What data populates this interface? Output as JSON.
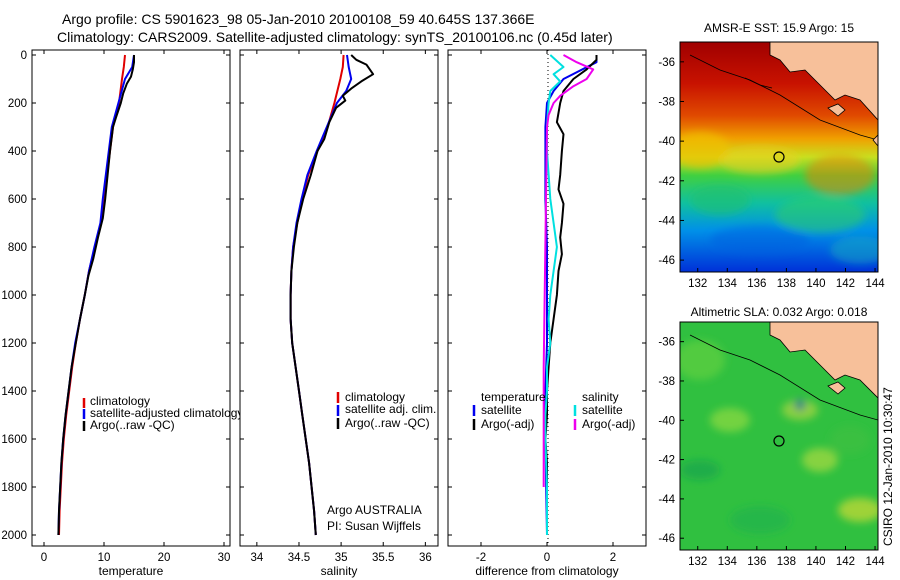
{
  "header": {
    "title_line1": "Argo profile: CS 5901623_98 05-Jan-2010 20100108_59 40.645S 137.366E",
    "title_line2": "Climatology: CARS2009. Satellite-adjusted climatology: synTS_20100106.nc (0.45d later)"
  },
  "side_label": "CSIRO 12-Jan-2010 10:30:47",
  "colors": {
    "red": "#e00000",
    "blue": "#0000ee",
    "black": "#000000",
    "cyan": "#00e0e0",
    "magenta": "#ee00ee",
    "land": "#f7c09a"
  },
  "chart_data": [
    {
      "type": "line",
      "id": "temperature",
      "xlabel": "temperature",
      "ylabel": "",
      "xlim": [
        -2,
        31
      ],
      "ylim": [
        0,
        2060
      ],
      "y_reversed": true,
      "xticks": [
        0,
        10,
        20,
        30
      ],
      "yticks": [
        0,
        200,
        400,
        600,
        800,
        1000,
        1200,
        1400,
        1600,
        1800,
        2000
      ],
      "legend": [
        {
          "label": "climatology",
          "color": "#e00000"
        },
        {
          "label": "satellite-adjusted climatology",
          "color": "#0000ee"
        },
        {
          "label": "Argo(..raw -QC)",
          "color": "#000000"
        }
      ],
      "series": [
        {
          "name": "climatology",
          "color": "#e00000",
          "points": [
            [
              13.5,
              0
            ],
            [
              13.3,
              50
            ],
            [
              13.0,
              100
            ],
            [
              12.5,
              200
            ],
            [
              11.5,
              300
            ],
            [
              11.0,
              400
            ],
            [
              10.5,
              500
            ],
            [
              10.0,
              600
            ],
            [
              9.5,
              700
            ],
            [
              8.5,
              800
            ],
            [
              7.5,
              900
            ],
            [
              6.8,
              1000
            ],
            [
              6.0,
              1100
            ],
            [
              5.3,
              1200
            ],
            [
              4.7,
              1300
            ],
            [
              4.2,
              1400
            ],
            [
              3.7,
              1500
            ],
            [
              3.3,
              1600
            ],
            [
              3.0,
              1700
            ],
            [
              2.8,
              1800
            ],
            [
              2.6,
              1900
            ],
            [
              2.5,
              2000
            ]
          ]
        },
        {
          "name": "satellite-adjusted climatology",
          "color": "#0000ee",
          "points": [
            [
              15.0,
              0
            ],
            [
              14.7,
              50
            ],
            [
              13.5,
              100
            ],
            [
              12.4,
              200
            ],
            [
              11.3,
              300
            ],
            [
              10.8,
              400
            ],
            [
              10.3,
              500
            ],
            [
              9.8,
              600
            ],
            [
              9.4,
              700
            ],
            [
              8.4,
              800
            ],
            [
              7.5,
              900
            ],
            [
              6.8,
              1000
            ],
            [
              6.0,
              1100
            ],
            [
              5.2,
              1200
            ],
            [
              4.6,
              1300
            ],
            [
              4.1,
              1400
            ],
            [
              3.6,
              1500
            ],
            [
              3.2,
              1600
            ],
            [
              2.9,
              1700
            ],
            [
              2.7,
              1800
            ],
            [
              2.5,
              1900
            ],
            [
              2.4,
              2000
            ]
          ]
        },
        {
          "name": "Argo(..raw -QC)",
          "color": "#000000",
          "points": [
            [
              15.0,
              0
            ],
            [
              15.0,
              30
            ],
            [
              14.8,
              60
            ],
            [
              14.5,
              90
            ],
            [
              13.8,
              120
            ],
            [
              13.2,
              160
            ],
            [
              12.8,
              200
            ],
            [
              12.0,
              260
            ],
            [
              11.5,
              300
            ],
            [
              11.0,
              400
            ],
            [
              10.6,
              500
            ],
            [
              10.2,
              600
            ],
            [
              9.8,
              680
            ],
            [
              9.0,
              760
            ],
            [
              8.2,
              850
            ],
            [
              7.4,
              920
            ],
            [
              6.8,
              1000
            ],
            [
              6.0,
              1100
            ],
            [
              5.3,
              1200
            ],
            [
              4.6,
              1300
            ],
            [
              4.1,
              1400
            ],
            [
              3.6,
              1500
            ],
            [
              3.2,
              1600
            ],
            [
              2.9,
              1700
            ],
            [
              2.7,
              1800
            ],
            [
              2.5,
              1900
            ],
            [
              2.4,
              2000
            ]
          ]
        }
      ]
    },
    {
      "type": "line",
      "id": "salinity",
      "xlabel": "salinity",
      "xlim": [
        33.8,
        36.15
      ],
      "ylim": [
        0,
        2060
      ],
      "y_reversed": true,
      "xticks": [
        34,
        34.5,
        35,
        35.5,
        36
      ],
      "tick_labels": [
        "34",
        "34.5",
        "35",
        "35.5",
        "36"
      ],
      "legend": [
        {
          "label": "climatology",
          "color": "#e00000"
        },
        {
          "label": "satellite adj. clim.",
          "color": "#0000ee"
        },
        {
          "label": "Argo(..raw -QC)",
          "color": "#000000"
        }
      ],
      "annotations": [
        "Argo AUSTRALIA",
        "PI: Susan Wijffels"
      ],
      "series": [
        {
          "name": "climatology",
          "color": "#e00000",
          "points": [
            [
              35.03,
              0
            ],
            [
              35.02,
              50
            ],
            [
              34.99,
              100
            ],
            [
              34.92,
              200
            ],
            [
              34.84,
              300
            ],
            [
              34.72,
              400
            ],
            [
              34.61,
              500
            ],
            [
              34.54,
              600
            ],
            [
              34.48,
              700
            ],
            [
              34.43,
              800
            ],
            [
              34.41,
              900
            ],
            [
              34.4,
              1000
            ],
            [
              34.4,
              1100
            ],
            [
              34.42,
              1200
            ],
            [
              34.46,
              1300
            ],
            [
              34.5,
              1400
            ],
            [
              34.54,
              1500
            ],
            [
              34.58,
              1600
            ],
            [
              34.62,
              1700
            ],
            [
              34.65,
              1800
            ],
            [
              34.68,
              1900
            ],
            [
              34.7,
              2000
            ]
          ]
        },
        {
          "name": "satellite adj. clim.",
          "color": "#0000ee",
          "points": [
            [
              35.07,
              0
            ],
            [
              35.09,
              50
            ],
            [
              35.12,
              100
            ],
            [
              35.06,
              150
            ],
            [
              34.95,
              200
            ],
            [
              34.83,
              300
            ],
            [
              34.71,
              400
            ],
            [
              34.6,
              500
            ],
            [
              34.53,
              600
            ],
            [
              34.47,
              700
            ],
            [
              34.43,
              800
            ],
            [
              34.41,
              900
            ],
            [
              34.4,
              1000
            ],
            [
              34.4,
              1100
            ],
            [
              34.42,
              1200
            ],
            [
              34.46,
              1300
            ],
            [
              34.5,
              1400
            ],
            [
              34.54,
              1500
            ],
            [
              34.58,
              1600
            ],
            [
              34.62,
              1700
            ],
            [
              34.65,
              1800
            ],
            [
              34.68,
              1900
            ],
            [
              34.7,
              2000
            ]
          ]
        },
        {
          "name": "Argo(..raw -QC)",
          "color": "#000000",
          "points": [
            [
              35.12,
              0
            ],
            [
              35.18,
              20
            ],
            [
              35.3,
              40
            ],
            [
              35.38,
              80
            ],
            [
              35.24,
              110
            ],
            [
              35.12,
              140
            ],
            [
              35.02,
              170
            ],
            [
              35.05,
              190
            ],
            [
              34.94,
              220
            ],
            [
              34.86,
              280
            ],
            [
              34.8,
              350
            ],
            [
              34.72,
              400
            ],
            [
              34.64,
              500
            ],
            [
              34.55,
              600
            ],
            [
              34.48,
              700
            ],
            [
              34.44,
              800
            ],
            [
              34.41,
              900
            ],
            [
              34.4,
              1000
            ],
            [
              34.4,
              1100
            ],
            [
              34.42,
              1200
            ],
            [
              34.46,
              1300
            ],
            [
              34.5,
              1400
            ],
            [
              34.54,
              1500
            ],
            [
              34.58,
              1600
            ],
            [
              34.62,
              1700
            ],
            [
              34.65,
              1800
            ],
            [
              34.68,
              1900
            ],
            [
              34.7,
              2000
            ]
          ]
        }
      ]
    },
    {
      "type": "line",
      "id": "difference",
      "xlabel": "difference from climatology",
      "xlim": [
        -3,
        3
      ],
      "ylim": [
        0,
        2060
      ],
      "y_reversed": true,
      "xticks": [
        -2,
        0,
        2
      ],
      "legend": [
        {
          "label": "temperature",
          "color": "none"
        },
        {
          "label": "satellite",
          "color": "#0000ee"
        },
        {
          "label": "Argo(-adj)",
          "color": "#000000"
        },
        {
          "label": "salinity",
          "color": "none"
        },
        {
          "label": "satellite",
          "color": "#00e0e0"
        },
        {
          "label": "Argo(-adj)",
          "color": "#ee00ee"
        }
      ],
      "series": [
        {
          "name": "temperature satellite",
          "color": "#0000ee",
          "points": [
            [
              1.5,
              0
            ],
            [
              1.5,
              30
            ],
            [
              0.5,
              100
            ],
            [
              0.2,
              150
            ],
            [
              0.0,
              200
            ],
            [
              -0.05,
              300
            ],
            [
              -0.05,
              400
            ],
            [
              -0.05,
              600
            ],
            [
              0.0,
              800
            ],
            [
              0.0,
              1200
            ],
            [
              -0.05,
              1400
            ],
            [
              -0.05,
              1600
            ],
            [
              0.0,
              2000
            ]
          ]
        },
        {
          "name": "temperature Argo(-adj)",
          "color": "#000000",
          "points": [
            [
              1.5,
              0
            ],
            [
              1.5,
              20
            ],
            [
              1.2,
              60
            ],
            [
              0.8,
              100
            ],
            [
              0.5,
              150
            ],
            [
              0.4,
              200
            ],
            [
              0.3,
              280
            ],
            [
              0.5,
              330
            ],
            [
              0.45,
              400
            ],
            [
              0.4,
              500
            ],
            [
              0.35,
              560
            ],
            [
              0.5,
              620
            ],
            [
              0.45,
              700
            ],
            [
              0.4,
              760
            ],
            [
              0.45,
              830
            ],
            [
              0.35,
              900
            ],
            [
              0.3,
              1000
            ],
            [
              0.2,
              1100
            ],
            [
              0.1,
              1200
            ],
            [
              0.05,
              1300
            ],
            [
              0.0,
              1400
            ],
            [
              0.0,
              1500
            ],
            [
              -0.05,
              1600
            ],
            [
              0.0,
              1700
            ],
            [
              0.0,
              1800
            ],
            [
              0.0,
              1900
            ],
            [
              0.0,
              2000
            ]
          ]
        },
        {
          "name": "salinity satellite",
          "color": "#00e0e0",
          "points": [
            [
              0.1,
              0
            ],
            [
              0.5,
              50
            ],
            [
              0.2,
              80
            ],
            [
              0.4,
              110
            ],
            [
              0.1,
              150
            ],
            [
              0.05,
              200
            ],
            [
              0.0,
              300
            ],
            [
              0.0,
              400
            ],
            [
              0.1,
              600
            ],
            [
              0.2,
              700
            ],
            [
              0.3,
              800
            ],
            [
              0.2,
              900
            ],
            [
              0.1,
              1000
            ],
            [
              0.05,
              1100
            ],
            [
              0.1,
              1200
            ],
            [
              0.0,
              1300
            ],
            [
              0.0,
              1400
            ],
            [
              -0.05,
              1500
            ],
            [
              -0.05,
              1600
            ],
            [
              0.0,
              1800
            ],
            [
              0.0,
              1900
            ],
            [
              0.0,
              2000
            ]
          ]
        },
        {
          "name": "salinity Argo(-adj)",
          "color": "#ee00ee",
          "points": [
            [
              0.5,
              0
            ],
            [
              0.9,
              30
            ],
            [
              1.4,
              60
            ],
            [
              1.2,
              100
            ],
            [
              0.8,
              130
            ],
            [
              0.4,
              170
            ],
            [
              0.2,
              200
            ],
            [
              0.05,
              250
            ],
            [
              0.0,
              300
            ],
            [
              -0.1,
              1300
            ],
            [
              -0.1,
              1600
            ],
            [
              -0.1,
              1700
            ],
            [
              -0.1,
              1800
            ]
          ]
        }
      ]
    },
    {
      "type": "heatmap",
      "id": "sst_map",
      "title": "AMSR-E SST: 15.9 Argo: 15",
      "xlim": [
        130.8,
        144.2
      ],
      "ylim": [
        -46.6,
        -35.0
      ],
      "xticks": [
        132,
        134,
        136,
        138,
        140,
        142,
        144
      ],
      "yticks": [
        -36,
        -38,
        -40,
        -42,
        -44,
        -46
      ],
      "marker": {
        "lon": 137.366,
        "lat": -40.645
      }
    },
    {
      "type": "heatmap",
      "id": "sla_map",
      "title": "Altimetric SLA: 0.032 Argo: 0.018",
      "xlim": [
        130.8,
        144.2
      ],
      "ylim": [
        -46.6,
        -35.0
      ],
      "xticks": [
        132,
        134,
        136,
        138,
        140,
        142,
        144
      ],
      "yticks": [
        -36,
        -38,
        -40,
        -42,
        -44,
        -46
      ],
      "marker": {
        "lon": 137.366,
        "lat": -40.645
      }
    }
  ]
}
